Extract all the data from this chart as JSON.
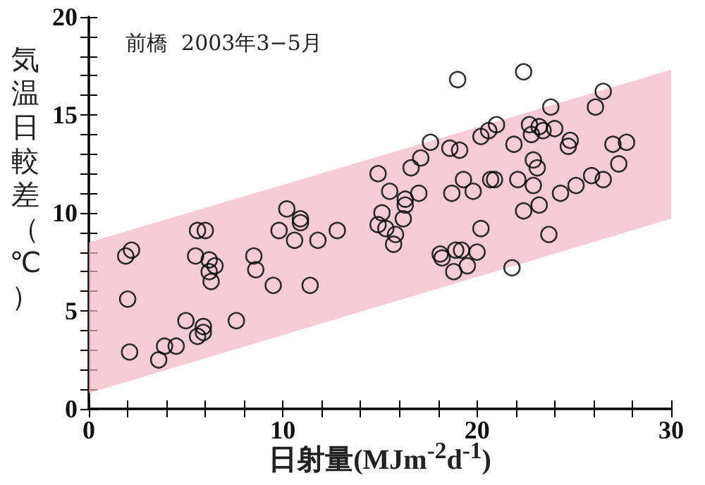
{
  "chart_data": {
    "type": "scatter",
    "title": "前橋  2003年3−5月",
    "xlabel": "日射量(MJm$^{-2}$d$^{-1}$)",
    "ylabel": "気温日較差（℃）",
    "xlim": [
      0,
      30
    ],
    "xticks": [
      0,
      {
        "value": 2,
        "label": null
      },
      {
        "value": 4,
        "label": null
      },
      {
        "value": 6,
        "label": null
      },
      {
        "value": 8,
        "label": null
      },
      10,
      {
        "value": 12,
        "label": null
      },
      {
        "value": 14,
        "label": null
      },
      {
        "value": 16,
        "label": null
      },
      {
        "value": 18,
        "label": null
      },
      20,
      {
        "value": 22,
        "label": null
      },
      {
        "value": 24,
        "label": null
      },
      {
        "value": 26,
        "label": null
      },
      {
        "value": 28,
        "label": null
      },
      30
    ],
    "ylim": [
      0,
      20
    ],
    "yticks": [
      0,
      {
        "value": 1,
        "label": null
      },
      {
        "value": 2,
        "label": null
      },
      {
        "value": 3,
        "label": null
      },
      {
        "value": 4,
        "label": null
      },
      5,
      {
        "value": 6,
        "label": null
      },
      {
        "value": 7,
        "label": null
      },
      {
        "value": 8,
        "label": null
      },
      {
        "value": 9,
        "label": null
      },
      10,
      {
        "value": 11,
        "label": null
      },
      {
        "value": 12,
        "label": null
      },
      {
        "value": 13,
        "label": null
      },
      {
        "value": 14,
        "label": null
      },
      15,
      {
        "value": 16,
        "label": null
      },
      {
        "value": 17,
        "label": null
      },
      {
        "value": 18,
        "label": null
      },
      {
        "value": 19,
        "label": null
      },
      20
    ],
    "grid": false,
    "marker": "circle",
    "series": [
      {
        "type": "area",
        "color": "#f2b6c6",
        "x": [
          0,
          30
        ],
        "values": [
          null,
          null
        ],
        "lower": [
          0.8,
          9.7
        ],
        "upper": [
          8.5,
          17.3
        ]
      },
      {
        "type": "scatter",
        "color": "#000000",
        "x": [
          1.9,
          2.2,
          2.0,
          2.1,
          3.6,
          3.9,
          4.5,
          5.0,
          5.6,
          6.0,
          5.5,
          6.2,
          6.5,
          6.2,
          6.3,
          5.9,
          5.9,
          5.6,
          7.6,
          8.5,
          8.6,
          9.5,
          9.8,
          10.2,
          10.9,
          10.9,
          10.6,
          11.8,
          12.8,
          11.4,
          14.9,
          15.5,
          15.1,
          14.9,
          15.3,
          15.8,
          15.7,
          16.2,
          16.3,
          16.3,
          17.0,
          16.6,
          17.1,
          17.6,
          18.6,
          19.1,
          19.0,
          19.3,
          18.7,
          19.8,
          20.7,
          20.2,
          18.1,
          18.2,
          18.9,
          19.2,
          20.0,
          19.5,
          18.8,
          20.2,
          20.6,
          21.0,
          22.4,
          21.9,
          22.7,
          22.8,
          23.2,
          23.4,
          24.0,
          23.8,
          26.1,
          26.5,
          24.7,
          24.8,
          27.0,
          27.7,
          27.3,
          22.9,
          23.1,
          20.9,
          22.1,
          22.9,
          25.9,
          26.5,
          25.1,
          24.3,
          23.2,
          22.4,
          23.7,
          21.8
        ],
        "values": [
          7.8,
          8.1,
          5.6,
          2.9,
          2.5,
          3.2,
          3.2,
          4.5,
          9.1,
          9.1,
          7.8,
          7.6,
          7.3,
          7.0,
          6.5,
          4.2,
          3.9,
          3.7,
          4.5,
          7.8,
          7.1,
          6.3,
          9.1,
          10.2,
          9.7,
          9.5,
          8.6,
          8.6,
          9.1,
          6.3,
          12.0,
          11.1,
          10.0,
          9.4,
          9.2,
          8.9,
          8.4,
          9.7,
          10.4,
          10.7,
          11.0,
          12.3,
          12.8,
          13.6,
          13.3,
          13.2,
          16.8,
          11.7,
          11.0,
          11.1,
          11.7,
          9.2,
          7.9,
          7.7,
          8.1,
          8.1,
          8.0,
          7.3,
          7.0,
          13.9,
          14.2,
          14.5,
          17.2,
          13.5,
          14.5,
          14.0,
          14.4,
          14.2,
          14.3,
          15.4,
          15.4,
          16.2,
          13.4,
          13.7,
          13.5,
          13.6,
          12.5,
          12.7,
          12.3,
          11.7,
          11.7,
          11.4,
          11.9,
          11.7,
          11.4,
          11.0,
          10.4,
          10.1,
          8.9,
          7.2
        ]
      }
    ]
  }
}
